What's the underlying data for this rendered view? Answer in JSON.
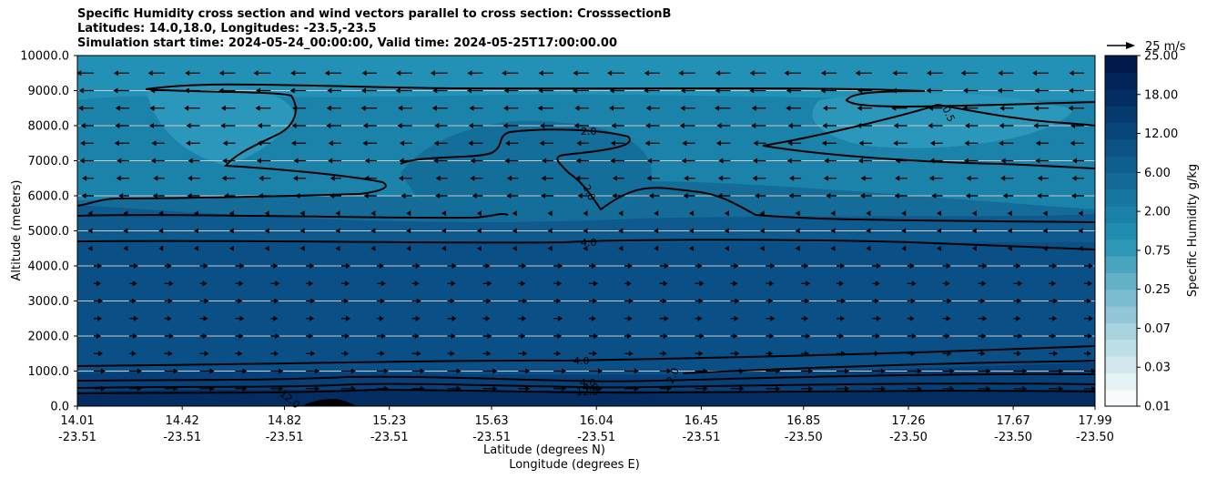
{
  "chart_data": {
    "type": "heatmap",
    "title_lines": [
      "Specific Humidity cross section and wind vectors parallel to cross section: CrosssectionB",
      "Latitudes: 14.0,18.0, Longitudes: -23.5,-23.5",
      "Simulation start time: 2024-05-24_00:00:00, Valid time: 2024-05-25T17:00:00.00"
    ],
    "ylabel": "Altitude (meters)",
    "xlabel_lat": "Latitude (degrees N)",
    "xlabel_lon": "Longitude (degrees E)",
    "ylim": [
      0,
      10000
    ],
    "yticks": [
      "0.0",
      "1000.0",
      "2000.0",
      "3000.0",
      "4000.0",
      "5000.0",
      "6000.0",
      "7000.0",
      "8000.0",
      "9000.0",
      "10000.0"
    ],
    "xticks_lat": [
      "14.01",
      "14.42",
      "14.82",
      "15.23",
      "15.63",
      "16.04",
      "16.45",
      "16.85",
      "17.26",
      "17.67",
      "17.99"
    ],
    "xticks_lon": [
      "-23.51",
      "-23.51",
      "-23.51",
      "-23.51",
      "-23.51",
      "-23.51",
      "-23.51",
      "-23.50",
      "-23.50",
      "-23.50",
      "-23.50"
    ],
    "colorbar_label": "Specific Humidity g/kg",
    "colorbar_ticks": [
      "0.01",
      "0.03",
      "0.07",
      "0.25",
      "0.75",
      "2.00",
      "6.00",
      "12.00",
      "18.00",
      "25.00"
    ],
    "colorbar_colors": [
      "#f7fbfc",
      "#e6f2f5",
      "#d2e8ee",
      "#bfdfe7",
      "#a9d3df",
      "#93c7d7",
      "#7cbccf",
      "#63b0c7",
      "#4aa4bf",
      "#2f98b8",
      "#1f8db0",
      "#1a82a8",
      "#1776a0",
      "#136a97",
      "#105e8d",
      "#0c5284",
      "#08467a",
      "#063a6f",
      "#042e63",
      "#022357",
      "#01194b"
    ],
    "quiver_key": "25 m/s",
    "contour_labels": [
      "2.0",
      "2.0",
      "4.0",
      "4.0",
      "4.0",
      "4.0",
      "12.0",
      "12.0",
      "0.5",
      "2.0"
    ],
    "grid": true
  }
}
